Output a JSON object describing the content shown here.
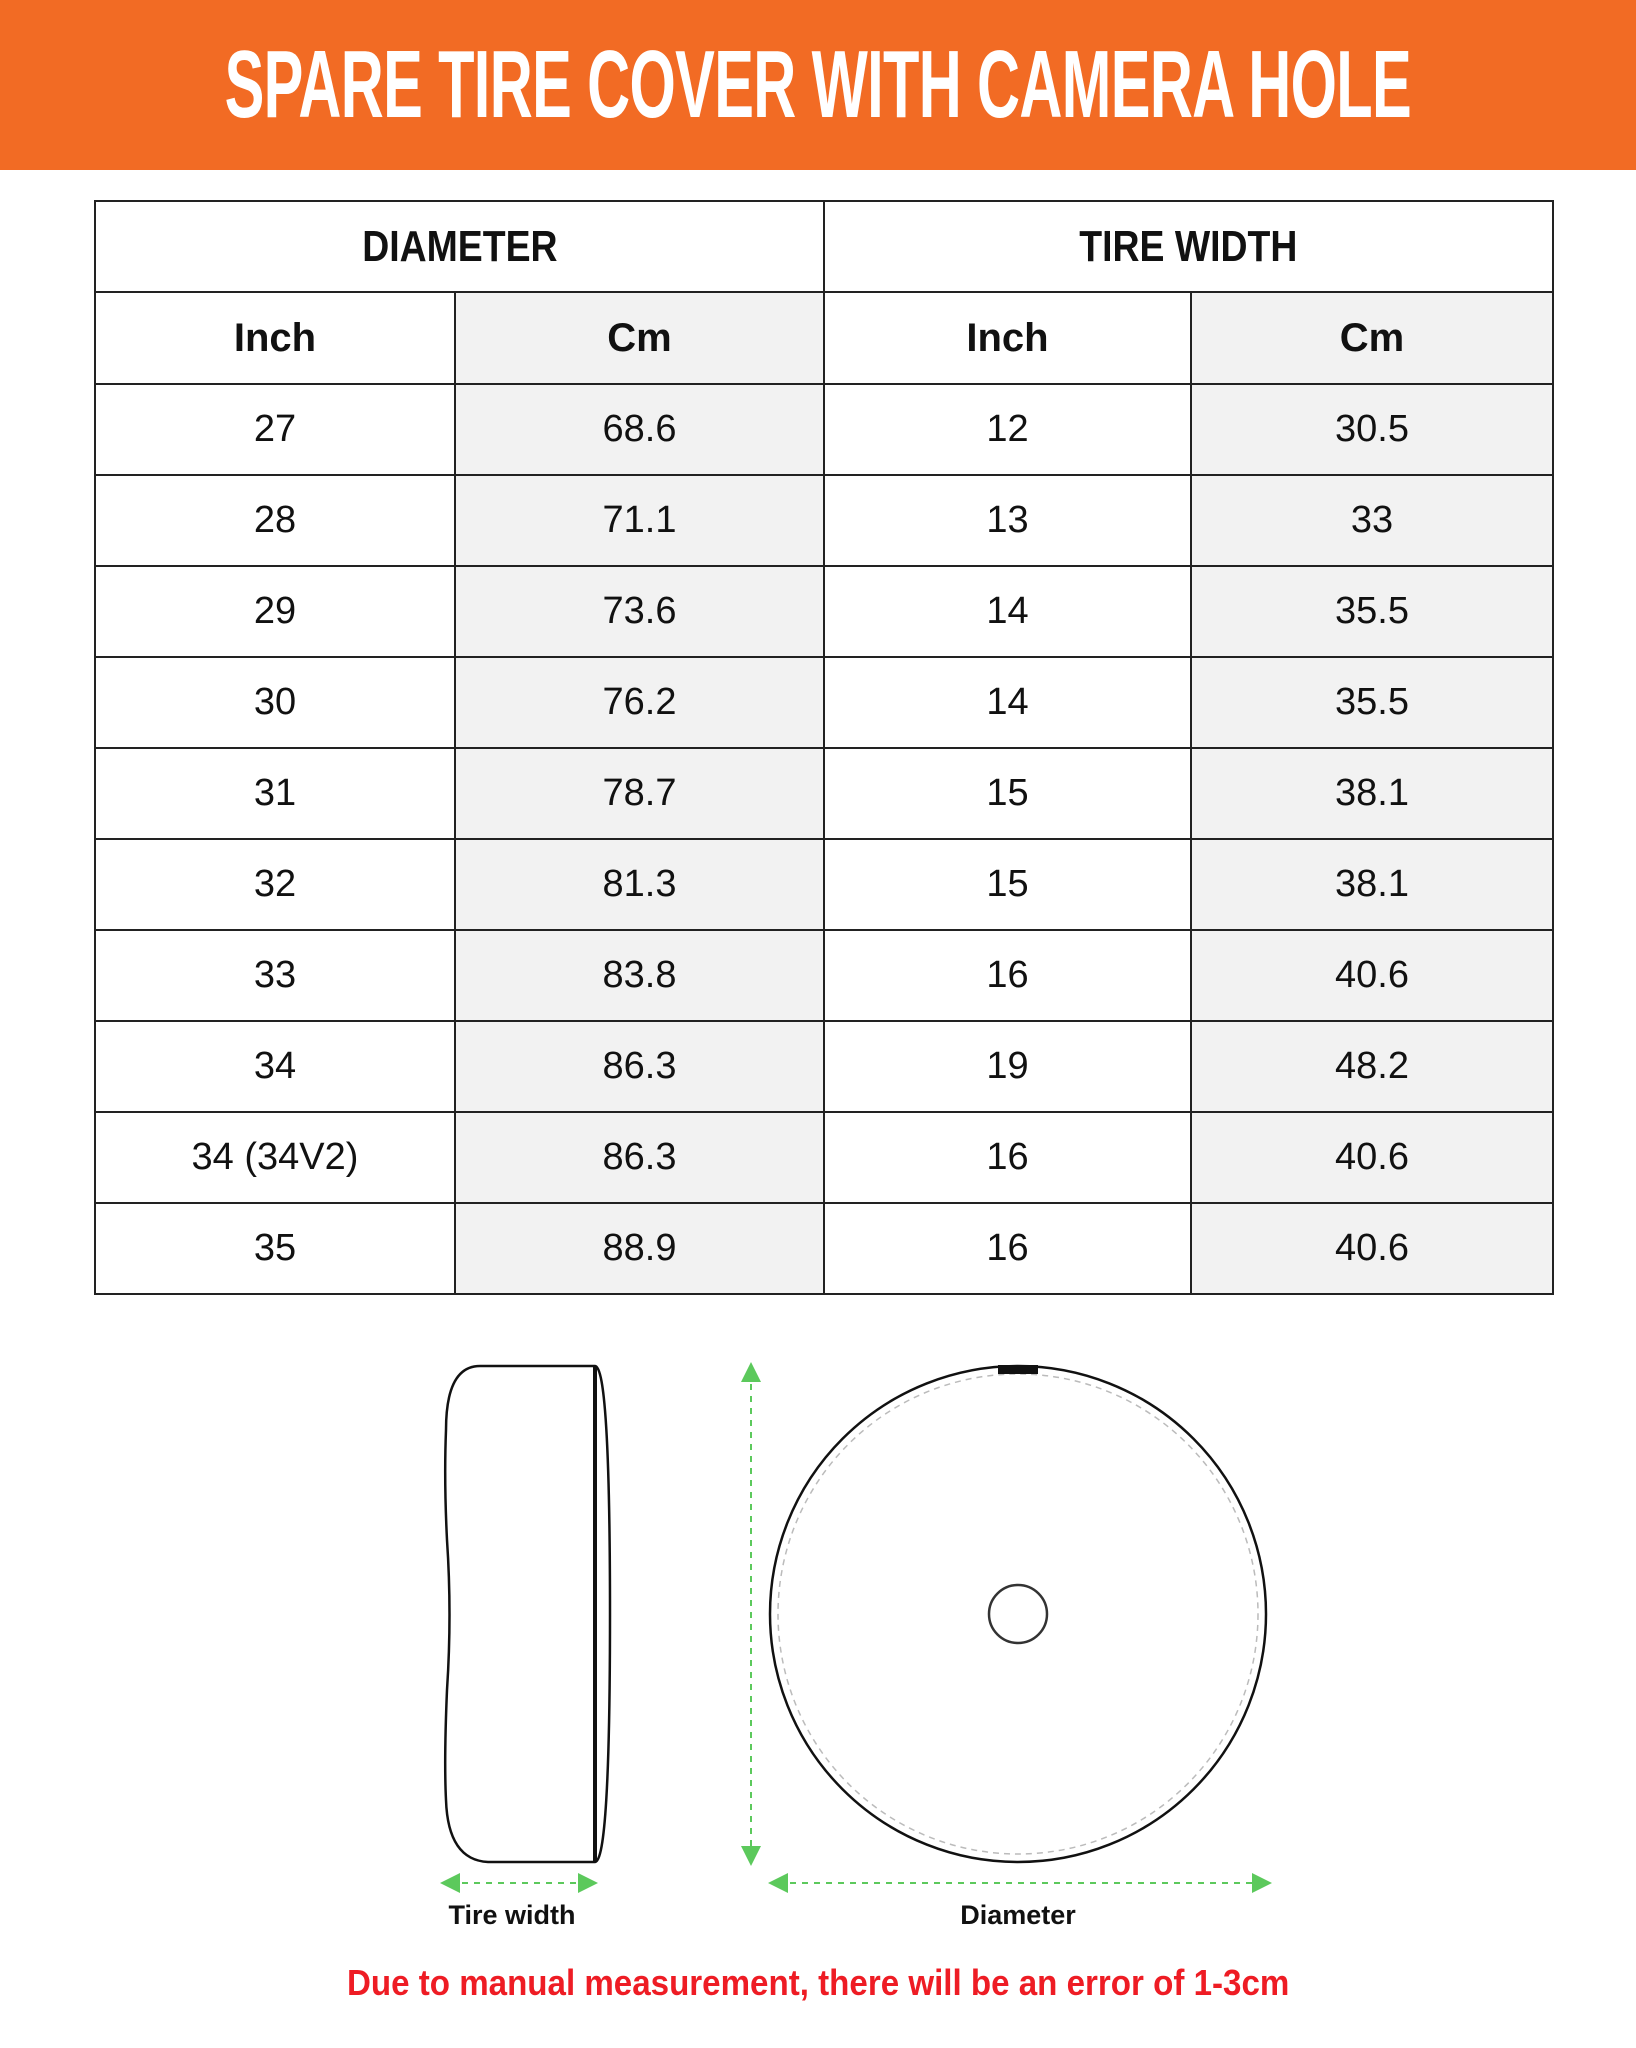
{
  "title": "SPARE TIRE COVER WITH CAMERA HOLE",
  "colors": {
    "banner": "#f26b24",
    "note": "#ee1c24",
    "arrow": "#5cc95c",
    "alt_column": "#f2f2f2"
  },
  "table": {
    "groups": [
      "DIAMETER",
      "TIRE WIDTH"
    ],
    "subheaders": [
      "Inch",
      "Cm",
      "Inch",
      "Cm"
    ],
    "rows": [
      [
        "27",
        "68.6",
        "12",
        "30.5"
      ],
      [
        "28",
        "71.1",
        "13",
        "33"
      ],
      [
        "29",
        "73.6",
        "14",
        "35.5"
      ],
      [
        "30",
        "76.2",
        "14",
        "35.5"
      ],
      [
        "31",
        "78.7",
        "15",
        "38.1"
      ],
      [
        "32",
        "81.3",
        "15",
        "38.1"
      ],
      [
        "33",
        "83.8",
        "16",
        "40.6"
      ],
      [
        "34",
        "86.3",
        "19",
        "48.2"
      ],
      [
        "34 (34V2)",
        "86.3",
        "16",
        "40.6"
      ],
      [
        "35",
        "88.9",
        "16",
        "40.6"
      ]
    ]
  },
  "diagram": {
    "tire_width_label": "Tire width",
    "diameter_label": "Diameter"
  },
  "note": "Due to manual measurement, there will be an error of 1-3cm"
}
